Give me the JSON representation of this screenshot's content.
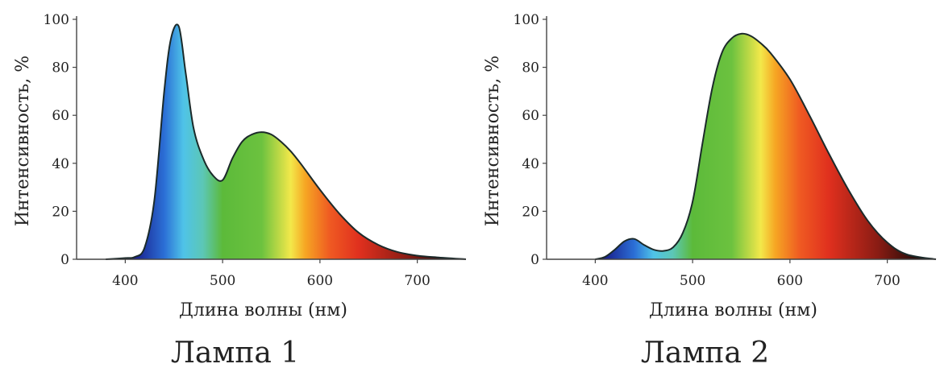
{
  "chart_data": [
    {
      "type": "area",
      "title": "Лампа 1",
      "xlabel": "Длина волны (нм)",
      "ylabel": "Интенсивность, %",
      "xlim": [
        350,
        750
      ],
      "ylim": [
        0,
        100
      ],
      "x_ticks": [
        "400",
        "500",
        "600",
        "700"
      ],
      "y_ticks": [
        "0",
        "20",
        "40",
        "60",
        "80",
        "100"
      ],
      "grid": false,
      "fill": "visible-spectrum gradient",
      "series": [
        {
          "x": [
            380,
            400,
            410,
            420,
            430,
            440,
            447,
            455,
            462,
            470,
            480,
            490,
            500,
            510,
            520,
            530,
            540,
            550,
            560,
            570,
            580,
            600,
            620,
            640,
            660,
            680,
            700,
            720,
            750
          ],
          "values": [
            0,
            0.5,
            1,
            5,
            25,
            70,
            92,
            97,
            78,
            55,
            42,
            35,
            33,
            42,
            49,
            52,
            53,
            52,
            49,
            45,
            40,
            29,
            19,
            11,
            6,
            3,
            1.5,
            0.8,
            0
          ]
        }
      ]
    },
    {
      "type": "area",
      "title": "Лампа 2",
      "xlabel": "Длина волны (нм)",
      "ylabel": "Интенсивность, %",
      "xlim": [
        350,
        750
      ],
      "ylim": [
        0,
        100
      ],
      "x_ticks": [
        "400",
        "500",
        "600",
        "700"
      ],
      "y_ticks": [
        "0",
        "20",
        "40",
        "60",
        "80",
        "100"
      ],
      "grid": false,
      "fill": "visible-spectrum gradient",
      "series": [
        {
          "x": [
            400,
            410,
            420,
            430,
            440,
            450,
            460,
            470,
            480,
            490,
            500,
            510,
            520,
            530,
            540,
            550,
            560,
            570,
            580,
            600,
            620,
            640,
            660,
            680,
            700,
            720,
            750
          ],
          "values": [
            0,
            1,
            4,
            7.5,
            8.5,
            6,
            4,
            3.5,
            5,
            11,
            24,
            48,
            71,
            86,
            92,
            94,
            93,
            90,
            86,
            75,
            60,
            44,
            29,
            16,
            7,
            2,
            0
          ]
        }
      ]
    }
  ],
  "captions": {
    "lamp1": "Лампа 1",
    "lamp2": "Лампа 2"
  },
  "spectrum_colors": [
    "#1a1f8c",
    "#2b6fd6",
    "#4fc3e8",
    "#5cc7b5",
    "#5cba3a",
    "#6cc23f",
    "#f3e84a",
    "#f6a623",
    "#ef5a22",
    "#e0301e",
    "#8a1c14",
    "#1a0a08"
  ]
}
